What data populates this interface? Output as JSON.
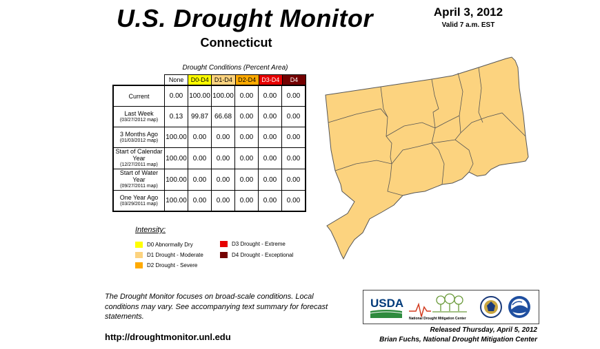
{
  "header": {
    "title": "U.S. Drought Monitor",
    "state": "Connecticut",
    "date": "April 3, 2012",
    "valid": "Valid 7 a.m. EST"
  },
  "conditions": {
    "caption": "Drought Conditions (Percent Area)",
    "columns": [
      "None",
      "D0-D4",
      "D1-D4",
      "D2-D4",
      "D3-D4",
      "D4"
    ],
    "column_colors": [
      "#ffffff",
      "#ffff00",
      "#fcd37f",
      "#ffaa00",
      "#e60000",
      "#730000"
    ],
    "column_text_colors": [
      "#000000",
      "#000000",
      "#000000",
      "#000000",
      "#ffffff",
      "#ffffff"
    ],
    "rows": [
      {
        "label": "Current",
        "sub": "",
        "values": [
          "0.00",
          "100.00",
          "100.00",
          "0.00",
          "0.00",
          "0.00"
        ]
      },
      {
        "label": "Last Week",
        "sub": "(03/27/2012 map)",
        "values": [
          "0.13",
          "99.87",
          "66.68",
          "0.00",
          "0.00",
          "0.00"
        ]
      },
      {
        "label": "3 Months Ago",
        "sub": "(01/03/2012 map)",
        "values": [
          "100.00",
          "0.00",
          "0.00",
          "0.00",
          "0.00",
          "0.00"
        ]
      },
      {
        "label": "Start of Calendar Year",
        "sub": "(12/27/2011 map)",
        "values": [
          "100.00",
          "0.00",
          "0.00",
          "0.00",
          "0.00",
          "0.00"
        ]
      },
      {
        "label": "Start of Water Year",
        "sub": "(09/27/2011 map)",
        "values": [
          "100.00",
          "0.00",
          "0.00",
          "0.00",
          "0.00",
          "0.00"
        ]
      },
      {
        "label": "One Year Ago",
        "sub": "(03/29/2011 map)",
        "values": [
          "100.00",
          "0.00",
          "0.00",
          "0.00",
          "0.00",
          "0.00"
        ]
      }
    ]
  },
  "legend": {
    "title": "Intensity:",
    "items": [
      {
        "label": "D0 Abnormally Dry",
        "color": "#ffff00"
      },
      {
        "label": "D1 Drought - Moderate",
        "color": "#fcd37f"
      },
      {
        "label": "D2 Drought - Severe",
        "color": "#ffaa00"
      },
      {
        "label": "D3 Drought - Extreme",
        "color": "#e60000"
      },
      {
        "label": "D4 Drought - Exceptional",
        "color": "#730000"
      }
    ]
  },
  "map": {
    "fill_color": "#fcd37f",
    "category": "D1 Drought - Moderate"
  },
  "footer": {
    "note": "The Drought Monitor focuses on broad-scale conditions. Local conditions may vary. See accompanying text summary for forecast statements.",
    "url": "http://droughtmonitor.unl.edu",
    "released": "Released Thursday, April 5, 2012",
    "author": "Brian Fuchs, National Drought Mitigation Center"
  },
  "logos": {
    "usda": "USDA",
    "ndmc": "National Drought Mitigation Center",
    "icons": [
      "usda-logo-icon",
      "ndmc-logo-icon",
      "doc-seal-icon",
      "noaa-logo-icon"
    ]
  }
}
